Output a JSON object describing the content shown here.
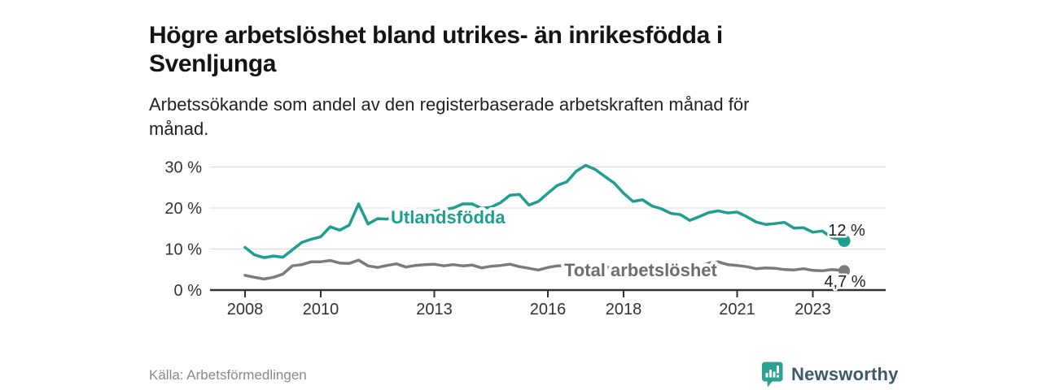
{
  "title": {
    "lines": [
      "Högre arbetslöshet bland utrikes- än inrikesfödda i",
      "Svenljunga"
    ]
  },
  "subtitle": {
    "lines": [
      "Arbetssökande som andel av den registerbaserade arbetskraften månad för",
      "månad."
    ]
  },
  "footer": {
    "source": "Källa: Arbetsförmedlingen",
    "brand": "Newsworthy"
  },
  "colors": {
    "accent_teal": "#1e9e90",
    "line_gray": "#7b7b7b",
    "label_gray": "#6d6d6d",
    "axis": "#333333",
    "grid": "#dcdcdc",
    "brand_icon": "#2ba294",
    "brand_text": "#3d5a68"
  },
  "chart_data": {
    "type": "line",
    "title": "Högre arbetslöshet bland utrikes- än inrikesfödda i Svenljunga",
    "subtitle": "Arbetssökande som andel av den registerbaserade arbetskraften månad för månad.",
    "xlabel": "",
    "ylabel": "",
    "unit": "%",
    "grid": true,
    "ylim": [
      0,
      32
    ],
    "xlim": [
      2007.6,
      2024.3
    ],
    "x_ticks": [
      2008,
      2010,
      2013,
      2016,
      2018,
      2021,
      2023
    ],
    "x_tick_labels": [
      "2008",
      "2010",
      "2013",
      "2016",
      "2018",
      "2021",
      "2023"
    ],
    "y_ticks": [
      0,
      10,
      20,
      30
    ],
    "y_tick_labels": [
      "0 %",
      "10 %",
      "20 %",
      "30 %"
    ],
    "legend_position": "inline-labels",
    "x": [
      2008.0,
      2008.25,
      2008.5,
      2008.75,
      2009.0,
      2009.25,
      2009.5,
      2009.75,
      2010.0,
      2010.25,
      2010.5,
      2010.75,
      2011.0,
      2011.25,
      2011.5,
      2011.75,
      2012.0,
      2012.25,
      2012.5,
      2012.75,
      2013.0,
      2013.25,
      2013.5,
      2013.75,
      2014.0,
      2014.25,
      2014.5,
      2014.75,
      2015.0,
      2015.25,
      2015.5,
      2015.75,
      2016.0,
      2016.25,
      2016.5,
      2016.75,
      2017.0,
      2017.25,
      2017.5,
      2017.75,
      2018.0,
      2018.25,
      2018.5,
      2018.75,
      2019.0,
      2019.25,
      2019.5,
      2019.75,
      2020.0,
      2020.25,
      2020.5,
      2020.75,
      2021.0,
      2021.25,
      2021.5,
      2021.75,
      2022.0,
      2022.25,
      2022.5,
      2022.75,
      2023.0,
      2023.25,
      2023.5,
      2023.75,
      2023.83
    ],
    "series": [
      {
        "name": "Utlandsfödda",
        "color": "#1e9e90",
        "end_label": "12 %",
        "end_value": 12,
        "values": [
          10.4,
          8.6,
          7.9,
          8.3,
          8.0,
          9.8,
          11.6,
          12.4,
          13.0,
          15.4,
          14.6,
          15.8,
          21.0,
          16.1,
          17.4,
          17.3,
          17.8,
          18.1,
          18.4,
          18.8,
          19.2,
          19.6,
          20.0,
          21.0,
          21.0,
          19.9,
          20.2,
          21.3,
          23.1,
          23.3,
          20.7,
          21.6,
          23.6,
          25.5,
          26.4,
          29.0,
          30.4,
          29.4,
          27.7,
          26.1,
          23.6,
          21.6,
          22.0,
          20.5,
          19.8,
          18.7,
          18.4,
          17.0,
          17.9,
          18.9,
          19.3,
          18.8,
          19.0,
          17.9,
          16.6,
          16.0,
          16.2,
          16.5,
          15.1,
          15.2,
          14.1,
          14.4,
          12.8,
          12.3,
          12.0
        ]
      },
      {
        "name": "Total arbetslöshet",
        "color": "#7b7b7b",
        "end_label": "4,7 %",
        "end_value": 4.7,
        "values": [
          3.6,
          3.1,
          2.7,
          3.1,
          3.9,
          5.9,
          6.2,
          6.9,
          6.9,
          7.2,
          6.6,
          6.5,
          7.3,
          5.9,
          5.5,
          6.0,
          6.4,
          5.6,
          6.0,
          6.2,
          6.3,
          5.9,
          6.2,
          5.9,
          6.1,
          5.4,
          5.8,
          6.0,
          6.3,
          5.7,
          5.3,
          4.9,
          5.5,
          5.9,
          6.0,
          5.8,
          6.0,
          5.7,
          5.5,
          5.6,
          5.8,
          5.4,
          5.3,
          5.5,
          5.6,
          5.3,
          5.5,
          5.2,
          5.6,
          6.6,
          6.9,
          6.2,
          6.0,
          5.7,
          5.2,
          5.4,
          5.3,
          5.0,
          4.9,
          5.2,
          4.8,
          4.7,
          5.0,
          4.8,
          4.7
        ]
      }
    ]
  }
}
